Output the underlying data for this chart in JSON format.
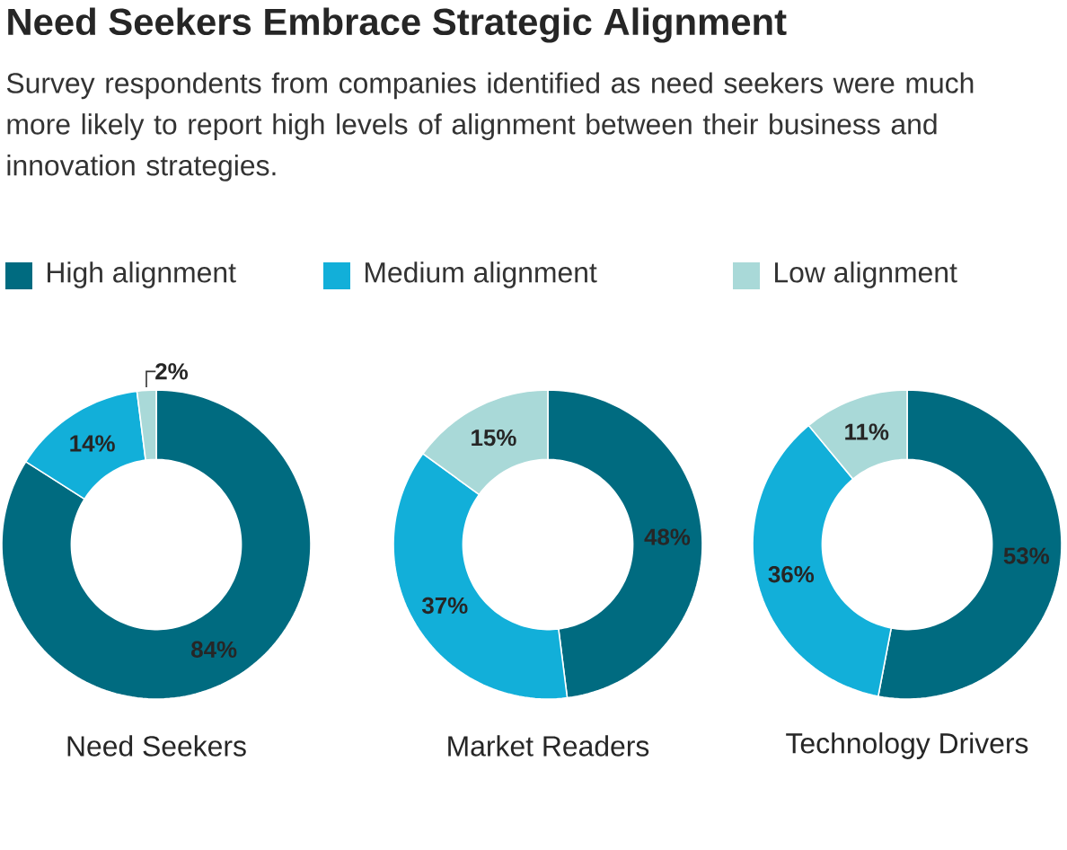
{
  "chart_data": [
    {
      "type": "donut",
      "title": "Need Seekers Embrace Strategic Alignment",
      "subtitle": "Survey respondents from companies identified as need seekers were much more likely to report high levels of alignment between their business and innovation strategies.",
      "legend": "top",
      "xlabel": "Need Seekers",
      "categories": [
        "High alignment",
        "Medium alignment",
        "Low alignment"
      ],
      "values": [
        84,
        14,
        2
      ],
      "value_labels": [
        "84%",
        "14%",
        "2%"
      ],
      "colors": [
        "#006b80",
        "#12afd9",
        "#a9d9d8"
      ]
    },
    {
      "type": "donut",
      "xlabel": "Market Readers",
      "values": [
        48,
        37,
        15
      ],
      "value_labels": [
        "48%",
        "37%",
        "15%"
      ],
      "colors": [
        "#006b80",
        "#12afd9",
        "#a9d9d8"
      ]
    },
    {
      "type": "donut",
      "xlabel": "Technology Drivers",
      "values": [
        53,
        36,
        11
      ],
      "value_labels": [
        "53%",
        "36%",
        "11%"
      ],
      "colors": [
        "#006b80",
        "#12afd9",
        "#a9d9d8"
      ]
    }
  ]
}
